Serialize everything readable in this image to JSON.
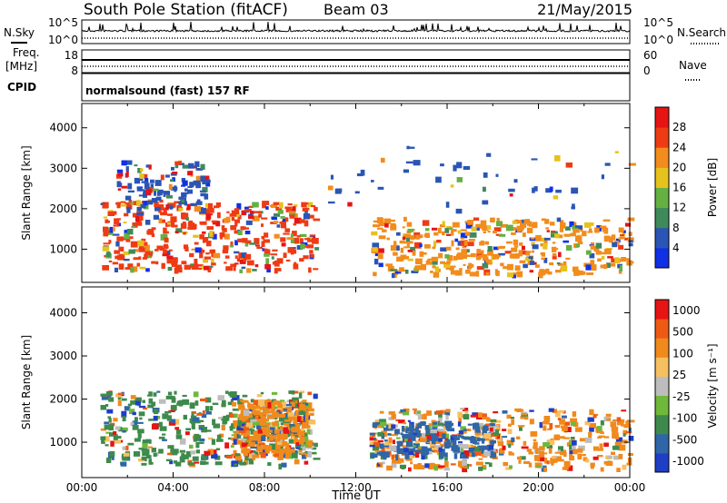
{
  "header": {
    "station": "South Pole Station (fitACF)",
    "beam": "Beam 03",
    "date": "21/May/2015"
  },
  "top_panels": {
    "nsky_label": "N.Sky",
    "nsky_ticks": [
      "10^5",
      "10^0"
    ],
    "nsearch_label": "N.Search",
    "nsearch_ticks": [
      "10^5",
      "10^0"
    ],
    "freq_label": "Freq.",
    "freq_unit": "[MHz]",
    "freq_ticks": [
      "18",
      "8"
    ],
    "nave_label": "Nave",
    "nave_ticks": [
      "60",
      "0"
    ],
    "cpid_label": "CPID",
    "cpid_value": "normalsound (fast) 157 RF"
  },
  "chart_data": [
    {
      "type": "heatmap",
      "name": "power",
      "xlabel": "",
      "ylabel": "Slant Range [km]",
      "x_ticks": [
        "00:00",
        "04:00",
        "08:00",
        "12:00",
        "16:00",
        "20:00",
        "00:00"
      ],
      "xlim_hours": [
        0,
        24
      ],
      "y_ticks": [
        "1000",
        "2000",
        "3000",
        "4000"
      ],
      "ylim": [
        180,
        4600
      ],
      "colorbar": {
        "label": "Power [dB]",
        "ticks": [
          "4",
          "8",
          "12",
          "16",
          "20",
          "24",
          "28"
        ],
        "colors": [
          "#1030e6",
          "#2a55b4",
          "#3f8a5a",
          "#65b043",
          "#e6c21c",
          "#f28c1c",
          "#ee3b14",
          "#e61414"
        ]
      },
      "regions": [
        {
          "t0": 0.8,
          "t1": 10.2,
          "r0": 500,
          "r1": 2200,
          "c": "#ee3b14",
          "weight": 1.0
        },
        {
          "t0": 1.5,
          "t1": 5.5,
          "r0": 2000,
          "r1": 3200,
          "c": "#2a55b4",
          "weight": 0.3
        },
        {
          "t0": 12.6,
          "t1": 24,
          "r0": 400,
          "r1": 1800,
          "c": "#f28c1c",
          "weight": 1.0
        },
        {
          "t0": 10.5,
          "t1": 24,
          "r0": 2000,
          "r1": 3600,
          "c": "#2a55b4",
          "weight": 0.12
        }
      ]
    },
    {
      "type": "heatmap",
      "name": "velocity",
      "xlabel": "Time UT",
      "ylabel": "Slant Range [km]",
      "x_ticks": [
        "00:00",
        "04:00",
        "08:00",
        "12:00",
        "16:00",
        "20:00",
        "00:00"
      ],
      "xlim_hours": [
        0,
        24
      ],
      "y_ticks": [
        "1000",
        "2000",
        "3000",
        "4000"
      ],
      "ylim": [
        180,
        4600
      ],
      "colorbar": {
        "label": "Velocity [m s⁻¹]",
        "ticks": [
          "1000",
          "500",
          "100",
          "25",
          "-25",
          "-100",
          "-500",
          "-1000"
        ],
        "colors": [
          "#1f3ec6",
          "#2e66a8",
          "#3e8a4c",
          "#6fb83a",
          "#bdbdbd",
          "#f6c060",
          "#f08a1c",
          "#ee5a14",
          "#e61414"
        ]
      },
      "regions": [
        {
          "t0": 0.8,
          "t1": 10.2,
          "r0": 500,
          "r1": 2200,
          "c": "#3e8a4c",
          "weight": 1.0
        },
        {
          "t0": 6.5,
          "t1": 10.0,
          "r0": 700,
          "r1": 2000,
          "c": "#f08a1c",
          "weight": 0.9
        },
        {
          "t0": 12.6,
          "t1": 24,
          "r0": 400,
          "r1": 1800,
          "c": "#f08a1c",
          "weight": 1.0
        },
        {
          "t0": 12.6,
          "t1": 18,
          "r0": 700,
          "r1": 1500,
          "c": "#2e66a8",
          "weight": 0.6
        }
      ]
    }
  ]
}
